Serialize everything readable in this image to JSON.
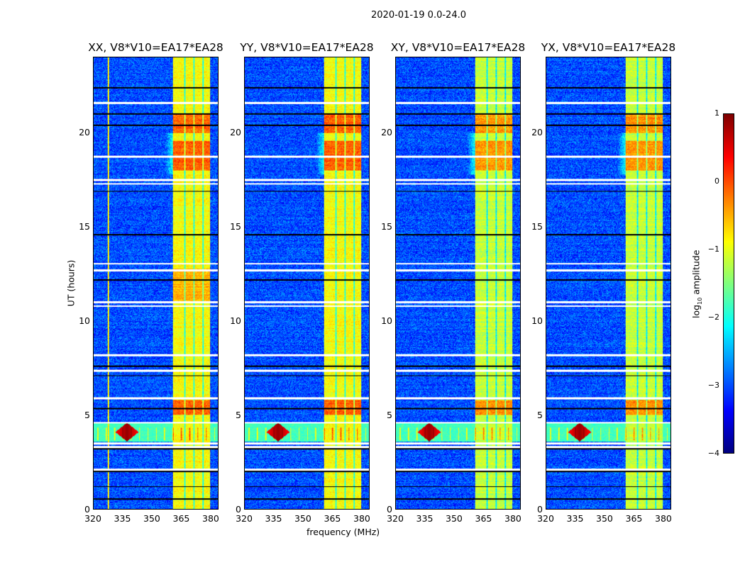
{
  "chart_data": {
    "type": "heatmap",
    "title": "2020-01-19 0.0-24.0",
    "xlabel": "frequency (MHz)",
    "ylabel": "UT (hours)",
    "xlim": [
      320,
      384
    ],
    "ylim": [
      0,
      24
    ],
    "xticks": [
      "320",
      "335",
      "350",
      "365",
      "380"
    ],
    "xtick_values": [
      320,
      335,
      350,
      365,
      380
    ],
    "yticks": [
      "0",
      "5",
      "10",
      "15",
      "20"
    ],
    "ytick_values": [
      0,
      5,
      10,
      15,
      20
    ],
    "panels": [
      {
        "title": "XX, V8*V10=EA17*EA28"
      },
      {
        "title": "YY, V8*V10=EA17*EA28"
      },
      {
        "title": "XY, V8*V10=EA17*EA28"
      },
      {
        "title": "YX, V8*V10=EA17*EA28"
      }
    ],
    "colorbar": {
      "label": "log10 amplitude",
      "label_main": "log",
      "label_sub": "10",
      "label_rest": " amplitude",
      "ticks": [
        "1",
        "0",
        "−1",
        "−2",
        "−3",
        "−4"
      ],
      "tick_values": [
        1,
        0,
        -1,
        -2,
        -3,
        -4
      ],
      "range": [
        -4,
        1
      ],
      "colormap": "jet"
    },
    "features": {
      "background_level": -3.0,
      "band_mhz": [
        360.5,
        380
      ],
      "band_level": -0.9,
      "band_gaps_mhz": [
        366.8,
        371.6,
        376.2
      ],
      "strong_times_hr": [
        [
          18.0,
          19.6
        ],
        [
          5.0,
          5.8
        ],
        [
          20.0,
          21.0
        ]
      ],
      "rfi_strip_hr": [
        3.6,
        4.6
      ],
      "rfi_peak_mhz": 337,
      "flagged_white_hr": [
        2.1,
        3.3,
        3.5,
        4.6,
        5.9,
        7.35,
        8.2,
        10.8,
        11.0,
        12.7,
        13.05,
        17.3,
        17.5,
        18.75,
        21.6
      ],
      "flagged_black_hr": [
        0.55,
        1.2,
        2.0,
        3.2,
        5.35,
        7.1,
        7.6,
        12.2,
        14.6,
        16.9,
        20.4,
        21.0,
        22.4
      ]
    }
  }
}
